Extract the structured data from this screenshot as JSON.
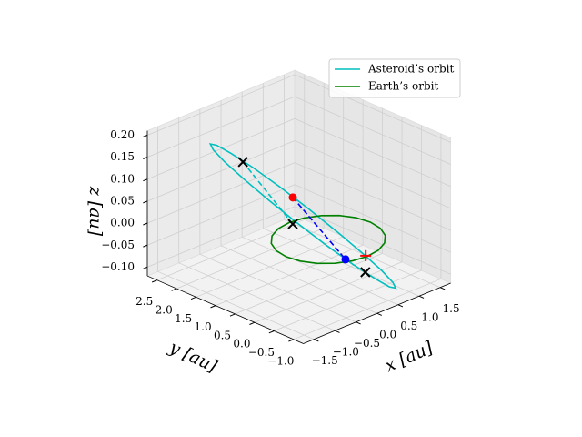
{
  "chart_data": {
    "type": "line3d",
    "xlabel": "x [au]",
    "ylabel": "y [au]",
    "zlabel": "z [au]",
    "xlim": [
      -1.75,
      1.75
    ],
    "ylim": [
      -1.25,
      2.75
    ],
    "zlim": [
      -0.12,
      0.21
    ],
    "xticks": [
      {
        "value": -1.5,
        "label": "−1.5"
      },
      {
        "value": -1,
        "label": "−1.0"
      },
      {
        "value": -0.5,
        "label": "−0.5"
      },
      {
        "value": 0,
        "label": "0.0"
      },
      0.5,
      {
        "value": 1,
        "label": "1.0"
      },
      1.5
    ],
    "yticks": [
      {
        "value": -1,
        "label": "−1.0"
      },
      {
        "value": -0.5,
        "label": "−0.5"
      },
      {
        "value": 0,
        "label": "0.0"
      },
      0.5,
      {
        "value": 1,
        "label": "1.0"
      },
      1.5,
      {
        "value": 2,
        "label": "2.0"
      },
      2.5
    ],
    "zticks": [
      {
        "value": -0.1,
        "label": "−0.10"
      },
      {
        "value": -0.05,
        "label": "−0.05"
      },
      {
        "value": 0,
        "label": "0.00"
      },
      0.05,
      {
        "value": 0.1,
        "label": "0.10"
      },
      0.15,
      {
        "value": 0.2,
        "label": "0.20"
      }
    ],
    "grid": true,
    "legend": "upper right",
    "series": [
      {
        "name": "Asteroid’s orbit",
        "color": "#00bfbf",
        "x": [
          -0.3,
          -0.184,
          -0.017,
          0.187,
          0.407,
          0.621,
          0.809,
          0.951,
          1.035,
          1.052,
          1.0,
          0.884,
          0.717,
          0.513,
          0.293,
          0.079,
          -0.109,
          -0.251,
          -0.335,
          -0.352
        ],
        "y": [
          2.7,
          2.665,
          2.47,
          2.134,
          1.689,
          1.178,
          0.653,
          0.164,
          -0.24,
          -0.521,
          -0.65,
          -0.615,
          -0.42,
          -0.084,
          0.361,
          0.872,
          1.397,
          1.886,
          2.29,
          2.571
        ],
        "z": [
          0.125,
          0.119,
          0.101,
          0.074,
          0.039,
          0,
          -0.039,
          -0.074,
          -0.101,
          -0.119,
          -0.125,
          -0.119,
          -0.101,
          -0.074,
          -0.039,
          0,
          0.039,
          0.074,
          0.101,
          0.119
        ]
      },
      {
        "name": "Earth’s orbit",
        "color": "#008000",
        "x": [
          1,
          0.951,
          0.809,
          0.588,
          0.309,
          0,
          -0.309,
          -0.588,
          -0.809,
          -0.951,
          -1,
          -0.951,
          -0.809,
          -0.588,
          -0.309,
          0,
          0.309,
          0.588,
          0.809,
          0.951
        ],
        "y": [
          0,
          0.309,
          0.588,
          0.809,
          0.951,
          1,
          0.951,
          0.809,
          0.588,
          0.309,
          0,
          -0.309,
          -0.588,
          -0.809,
          -0.951,
          -1,
          -0.951,
          -0.809,
          -0.588,
          -0.309
        ],
        "z": [
          0,
          0,
          0,
          0,
          0,
          0,
          0,
          0,
          0,
          0,
          0,
          0,
          0,
          0,
          0,
          0,
          0,
          0,
          0,
          0
        ]
      }
    ],
    "lines": [
      {
        "color": "#00bfbf",
        "x": [
          -0.1,
          0
        ],
        "y": [
          2.08,
          0.91
        ],
        "z": [
          0.1,
          0
        ]
      },
      {
        "color": "#0000ff",
        "x": [
          -0.24,
          -0.35
        ],
        "y": [
          0.65,
          -0.82
        ],
        "z": [
          0.08,
          0
        ]
      }
    ],
    "points": [
      {
        "marker": "x",
        "color": "#000000",
        "x": -0.1,
        "y": 2.08,
        "z": 0.1
      },
      {
        "marker": "x",
        "color": "#000000",
        "x": 0,
        "y": 0.91,
        "z": 0
      },
      {
        "marker": "x",
        "color": "#000000",
        "x": 0.15,
        "y": -0.79,
        "z": -0.05
      },
      {
        "marker": "+",
        "color": "#ff0000",
        "x": 0,
        "y": -0.96,
        "z": 0
      },
      {
        "marker": "o",
        "color": "#ff0000",
        "x": -0.24,
        "y": 0.65,
        "z": 0.08
      },
      {
        "marker": "o",
        "color": "#0000ff",
        "x": -0.35,
        "y": -0.82,
        "z": 0
      }
    ]
  }
}
